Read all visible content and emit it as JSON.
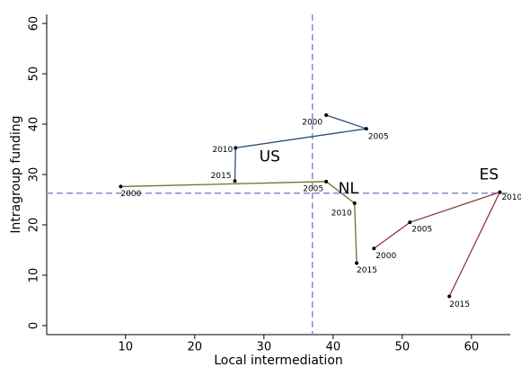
{
  "chart_data": {
    "type": "connected-scatter",
    "xlabel": "Local intermediation",
    "ylabel": "Intragroup funding",
    "xlim": [
      -1.4,
      65.6
    ],
    "ylim": [
      -1.8,
      61.8
    ],
    "xticks": [
      10,
      20,
      30,
      40,
      50,
      60
    ],
    "yticks": [
      0,
      10,
      20,
      30,
      40,
      50,
      60
    ],
    "xref": 37,
    "yref": 26.3,
    "ref_color": "#8a8ac8",
    "series": [
      {
        "name": "US",
        "color": "#2b4f73",
        "labels": [
          "2000",
          "2005",
          "2010",
          "2015"
        ],
        "x": [
          39,
          44.8,
          25.9,
          25.8
        ],
        "values": [
          41.8,
          39.1,
          35.3,
          28.7
        ]
      },
      {
        "name": "NL",
        "color": "#5b7a2c",
        "labels": [
          "2000",
          "2005",
          "2010",
          "2015"
        ],
        "x": [
          9.3,
          39,
          43.1,
          43.4
        ],
        "values": [
          27.6,
          28.6,
          24.3,
          12.4
        ]
      },
      {
        "name": "ES",
        "color": "#8e3b3b",
        "labels": [
          "2000",
          "2005",
          "2010",
          "2015"
        ],
        "x": [
          45.9,
          51.1,
          64.1,
          56.8
        ],
        "values": [
          15.3,
          20.5,
          26.5,
          5.8
        ]
      }
    ]
  }
}
